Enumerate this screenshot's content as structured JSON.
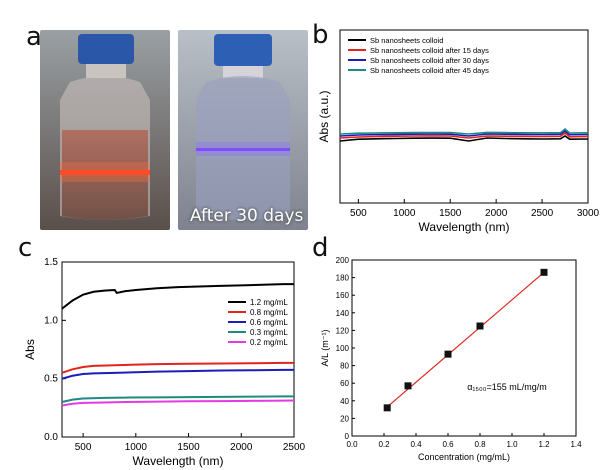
{
  "panel_labels": {
    "a": "a",
    "b": "b",
    "c": "c",
    "d": "d"
  },
  "photo_caption": "After 30 days",
  "colors": {
    "black": "#000000",
    "red": "#e3231f",
    "blue": "#1c1cb8",
    "teal": "#1f8a84",
    "magenta": "#e33be3",
    "fit_line": "#e0281f",
    "marker": "#111111",
    "laser_red": "#ff3b1f",
    "laser_violet": "#7a3cff"
  },
  "chart_data": [
    {
      "id": "b",
      "type": "line",
      "title": "",
      "xlabel": "Wavelength (nm)",
      "ylabel": "Abs (a.u.)",
      "xlim": [
        300,
        3000
      ],
      "xticks": [
        500,
        1000,
        1500,
        2000,
        2500,
        3000
      ],
      "yticks_shown": false,
      "legend_position": "top-left",
      "series": [
        {
          "name": "Sb nanosheets colloid",
          "color": "#000000",
          "x": [
            300,
            500,
            700,
            900,
            1100,
            1300,
            1500,
            1700,
            1900,
            2100,
            2300,
            2500,
            2700,
            2750,
            2800,
            3000
          ],
          "y": [
            0.12,
            0.138,
            0.142,
            0.145,
            0.148,
            0.149,
            0.148,
            0.12,
            0.15,
            0.145,
            0.142,
            0.14,
            0.142,
            0.17,
            0.138,
            0.14
          ]
        },
        {
          "name": "Sb nanosheets colloid after 15 days",
          "color": "#e3231f",
          "x": [
            300,
            500,
            700,
            900,
            1100,
            1300,
            1500,
            1700,
            1900,
            2100,
            2300,
            2500,
            2700,
            2750,
            2800,
            3000
          ],
          "y": [
            0.15,
            0.16,
            0.165,
            0.168,
            0.17,
            0.171,
            0.17,
            0.15,
            0.17,
            0.168,
            0.166,
            0.165,
            0.167,
            0.2,
            0.162,
            0.165
          ]
        },
        {
          "name": "Sb nanosheets colloid after 30 days",
          "color": "#1c1cb8",
          "x": [
            300,
            500,
            700,
            900,
            1100,
            1300,
            1500,
            1700,
            1900,
            2100,
            2300,
            2500,
            2700,
            2750,
            2800,
            3000
          ],
          "y": [
            0.17,
            0.18,
            0.184,
            0.186,
            0.188,
            0.189,
            0.188,
            0.17,
            0.19,
            0.188,
            0.186,
            0.185,
            0.187,
            0.22,
            0.183,
            0.185
          ]
        },
        {
          "name": "Sb nanosheets colloid after 45 days",
          "color": "#1f8a84",
          "x": [
            300,
            500,
            700,
            900,
            1100,
            1300,
            1500,
            1700,
            1900,
            2100,
            2300,
            2500,
            2700,
            2750,
            2800,
            3000
          ],
          "y": [
            0.19,
            0.198,
            0.2,
            0.202,
            0.204,
            0.205,
            0.204,
            0.19,
            0.206,
            0.204,
            0.202,
            0.201,
            0.203,
            0.24,
            0.2,
            0.202
          ]
        }
      ],
      "ylim": [
        0,
        1
      ]
    },
    {
      "id": "c",
      "type": "line",
      "title": "",
      "xlabel": "Wavelength (nm)",
      "ylabel": "Abs",
      "xlim": [
        300,
        2500
      ],
      "ylim": [
        0.0,
        1.5
      ],
      "xticks": [
        500,
        1000,
        1500,
        2000,
        2500
      ],
      "yticks": [
        0.0,
        0.5,
        1.0,
        1.5
      ],
      "legend_position": "top-right",
      "series": [
        {
          "name": "1.2 mg/mL",
          "color": "#000000",
          "x": [
            300,
            400,
            500,
            600,
            700,
            800,
            820,
            900,
            1000,
            1200,
            1400,
            1600,
            1800,
            2000,
            2200,
            2400,
            2500
          ],
          "y": [
            1.1,
            1.17,
            1.22,
            1.245,
            1.255,
            1.26,
            1.235,
            1.25,
            1.26,
            1.275,
            1.285,
            1.29,
            1.295,
            1.3,
            1.305,
            1.31,
            1.31
          ]
        },
        {
          "name": "0.8 mg/mL",
          "color": "#e3231f",
          "x": [
            300,
            400,
            500,
            600,
            800,
            1000,
            1200,
            1500,
            1800,
            2100,
            2400,
            2500
          ],
          "y": [
            0.55,
            0.58,
            0.6,
            0.61,
            0.615,
            0.62,
            0.625,
            0.628,
            0.63,
            0.632,
            0.635,
            0.635
          ]
        },
        {
          "name": "0.6 mg/mL",
          "color": "#1c1cb8",
          "x": [
            300,
            400,
            500,
            600,
            800,
            1000,
            1200,
            1500,
            1800,
            2100,
            2400,
            2500
          ],
          "y": [
            0.5,
            0.525,
            0.54,
            0.545,
            0.55,
            0.555,
            0.56,
            0.565,
            0.57,
            0.572,
            0.575,
            0.575
          ]
        },
        {
          "name": "0.3 mg/mL",
          "color": "#1f8a84",
          "x": [
            300,
            400,
            500,
            700,
            900,
            1200,
            1500,
            1800,
            2100,
            2400,
            2500
          ],
          "y": [
            0.3,
            0.32,
            0.33,
            0.335,
            0.338,
            0.34,
            0.342,
            0.344,
            0.346,
            0.348,
            0.348
          ]
        },
        {
          "name": "0.2 mg/mL",
          "color": "#e33be3",
          "x": [
            300,
            400,
            500,
            700,
            900,
            1200,
            1500,
            1800,
            2100,
            2400,
            2500
          ],
          "y": [
            0.27,
            0.285,
            0.292,
            0.296,
            0.3,
            0.303,
            0.306,
            0.308,
            0.31,
            0.312,
            0.313
          ]
        }
      ]
    },
    {
      "id": "d",
      "type": "scatter",
      "title": "",
      "xlabel": "Concentration (mg/mL)",
      "ylabel": "A/L (m⁻¹)",
      "xlim": [
        0.0,
        1.4
      ],
      "ylim": [
        0,
        200
      ],
      "xticks": [
        0.0,
        0.2,
        0.4,
        0.6,
        0.8,
        1.0,
        1.2,
        1.4
      ],
      "yticks": [
        0,
        20,
        40,
        60,
        80,
        100,
        120,
        140,
        160,
        180,
        200
      ],
      "points": {
        "x": [
          0.22,
          0.35,
          0.6,
          0.8,
          1.2
        ],
        "y": [
          32,
          57,
          93,
          125,
          186
        ]
      },
      "fit_line": {
        "x": [
          0.22,
          1.2
        ],
        "y": [
          33,
          186
        ]
      },
      "annotation": "α₁₅₀₀=155 mL/mg/m"
    }
  ]
}
